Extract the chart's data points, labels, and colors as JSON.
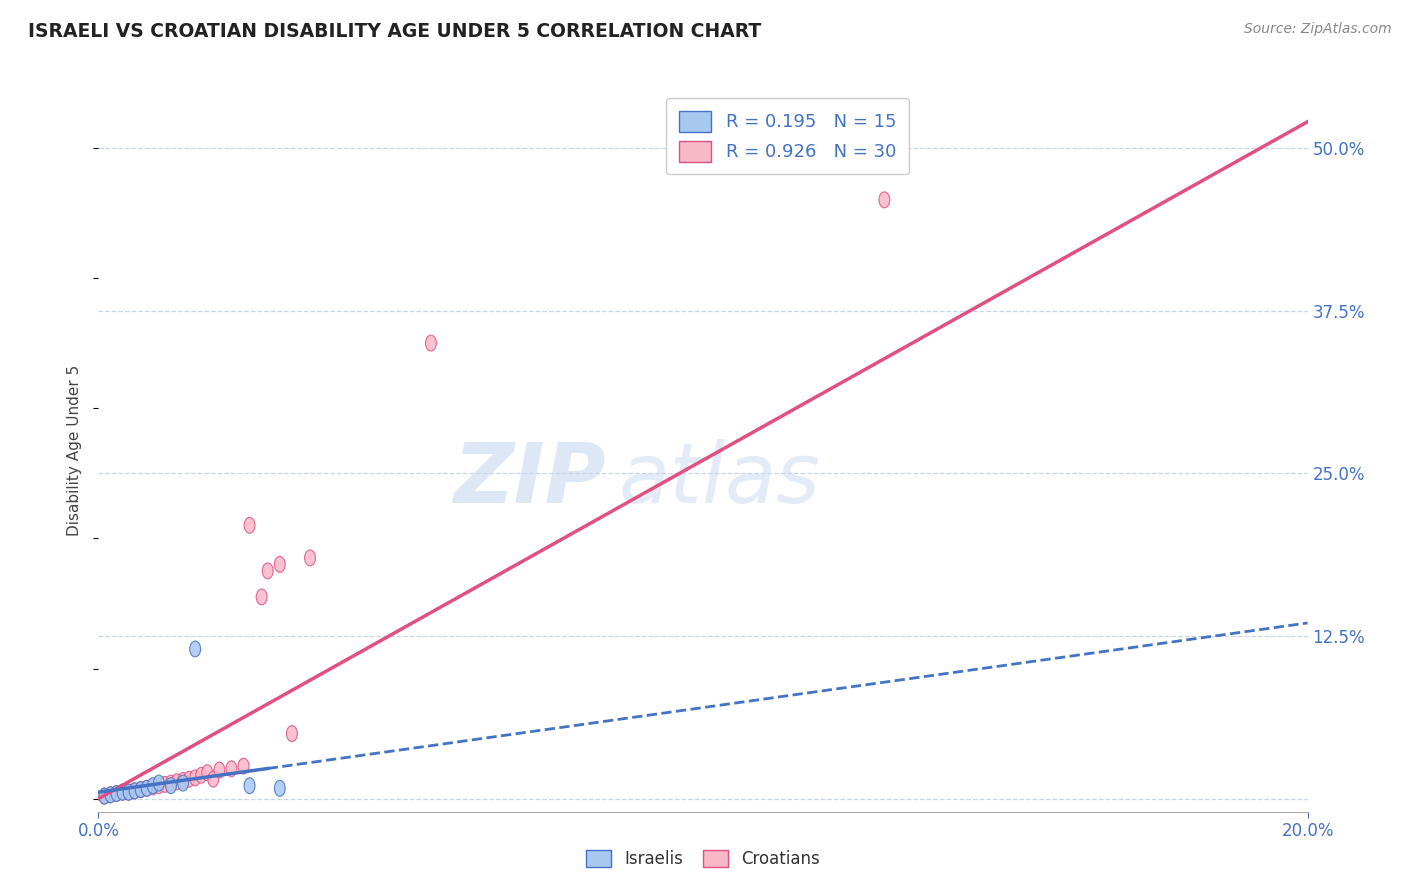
{
  "title": "ISRAELI VS CROATIAN DISABILITY AGE UNDER 5 CORRELATION CHART",
  "source": "Source: ZipAtlas.com",
  "ylabel": "Disability Age Under 5",
  "xlim": [
    0.0,
    0.2
  ],
  "ylim": [
    -0.01,
    0.545
  ],
  "yticks_right": [
    0.0,
    0.125,
    0.25,
    0.375,
    0.5
  ],
  "yticklabels_right": [
    "",
    "12.5%",
    "25.0%",
    "37.5%",
    "50.0%"
  ],
  "israeli_color": "#a8c8f0",
  "croatian_color": "#f8b8c8",
  "israeli_line_color": "#4472c4",
  "croatian_line_color": "#e05080",
  "background_color": "#ffffff",
  "grid_color": "#c8d4e8",
  "watermark": "ZIPatlas",
  "watermark_color": "#c8d8f0",
  "R_israeli": 0.195,
  "N_israeli": 15,
  "R_croatian": 0.926,
  "N_croatian": 30,
  "israeli_x": [
    0.001,
    0.002,
    0.003,
    0.004,
    0.005,
    0.006,
    0.007,
    0.008,
    0.009,
    0.01,
    0.012,
    0.014,
    0.016,
    0.025,
    0.03
  ],
  "israeli_y": [
    0.002,
    0.003,
    0.004,
    0.005,
    0.005,
    0.006,
    0.007,
    0.008,
    0.01,
    0.012,
    0.01,
    0.012,
    0.115,
    0.01,
    0.008
  ],
  "croatian_x": [
    0.001,
    0.002,
    0.003,
    0.004,
    0.005,
    0.006,
    0.007,
    0.008,
    0.009,
    0.01,
    0.011,
    0.012,
    0.013,
    0.014,
    0.015,
    0.016,
    0.017,
    0.018,
    0.019,
    0.02,
    0.022,
    0.024,
    0.025,
    0.027,
    0.028,
    0.03,
    0.032,
    0.035,
    0.055,
    0.13
  ],
  "croatian_y": [
    0.002,
    0.003,
    0.004,
    0.005,
    0.005,
    0.006,
    0.007,
    0.008,
    0.009,
    0.01,
    0.011,
    0.012,
    0.013,
    0.014,
    0.015,
    0.016,
    0.018,
    0.02,
    0.015,
    0.022,
    0.023,
    0.025,
    0.21,
    0.155,
    0.175,
    0.18,
    0.05,
    0.185,
    0.35,
    0.46
  ],
  "croatian_trend_x": [
    0.0,
    0.2
  ],
  "croatian_trend_y": [
    0.0,
    0.52
  ],
  "israeli_trend_x": [
    0.0,
    0.2
  ],
  "israeli_trend_y": [
    0.005,
    0.135
  ]
}
